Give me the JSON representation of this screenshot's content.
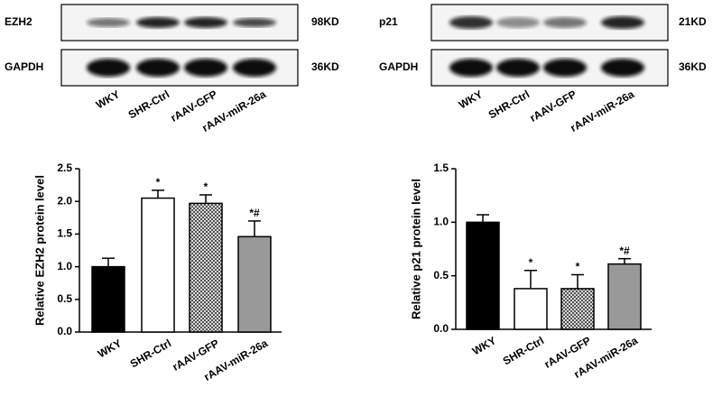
{
  "blots": {
    "left": {
      "rows": [
        {
          "protein": "EZH2",
          "size": "98KD"
        },
        {
          "protein": "GAPDH",
          "size": "36KD"
        }
      ],
      "lanes": [
        "WKY",
        "SHR-Ctrl",
        "rAAV-GFP",
        "rAAV-miR-26a"
      ]
    },
    "right": {
      "rows": [
        {
          "protein": "p21",
          "size": "21KD"
        },
        {
          "protein": "GAPDH",
          "size": "36KD"
        }
      ],
      "lanes": [
        "WKY",
        "SHR-Ctrl",
        "rAAV-GFP",
        "rAAV-miR-26a"
      ]
    }
  },
  "chart_data": [
    {
      "type": "bar",
      "y_label": "Relative EZH2 protein level",
      "categories": [
        "WKY",
        "SHR-Ctrl",
        "rAAV-GFP",
        "rAAV-miR-26a"
      ],
      "values": [
        1.0,
        2.05,
        1.97,
        1.46
      ],
      "errors": [
        0.13,
        0.12,
        0.13,
        0.24
      ],
      "annotations": [
        null,
        "*",
        "*",
        "*#"
      ],
      "colors": [
        "#000000",
        "#ffffff",
        "#b0b0b0",
        "#999999"
      ],
      "patterned": [
        false,
        false,
        true,
        false
      ],
      "ylim": [
        0,
        2.5
      ],
      "yticks": [
        {
          "value": 0,
          "label": "0.0"
        },
        {
          "value": 0.5,
          "label": "0.5"
        },
        {
          "value": 1,
          "label": "1.0"
        },
        {
          "value": 1.5,
          "label": "1.5"
        },
        {
          "value": 2,
          "label": "2.0"
        },
        {
          "value": 2.5,
          "label": "2.5"
        }
      ]
    },
    {
      "type": "bar",
      "y_label": "Relative p21 protein level",
      "categories": [
        "WKY",
        "SHR-Ctrl",
        "rAAV-GFP",
        "rAAV-miR-26a"
      ],
      "values": [
        1.0,
        0.38,
        0.38,
        0.61
      ],
      "errors": [
        0.07,
        0.17,
        0.13,
        0.05
      ],
      "annotations": [
        null,
        "*",
        "*",
        "*#"
      ],
      "colors": [
        "#000000",
        "#ffffff",
        "#b0b0b0",
        "#999999"
      ],
      "patterned": [
        false,
        false,
        true,
        false
      ],
      "ylim": [
        0,
        1.5
      ],
      "yticks": [
        {
          "value": 0,
          "label": "0.0"
        },
        {
          "value": 0.5,
          "label": "0.5"
        },
        {
          "value": 1,
          "label": "1.0"
        },
        {
          "value": 1.5,
          "label": "1.5"
        }
      ]
    }
  ]
}
